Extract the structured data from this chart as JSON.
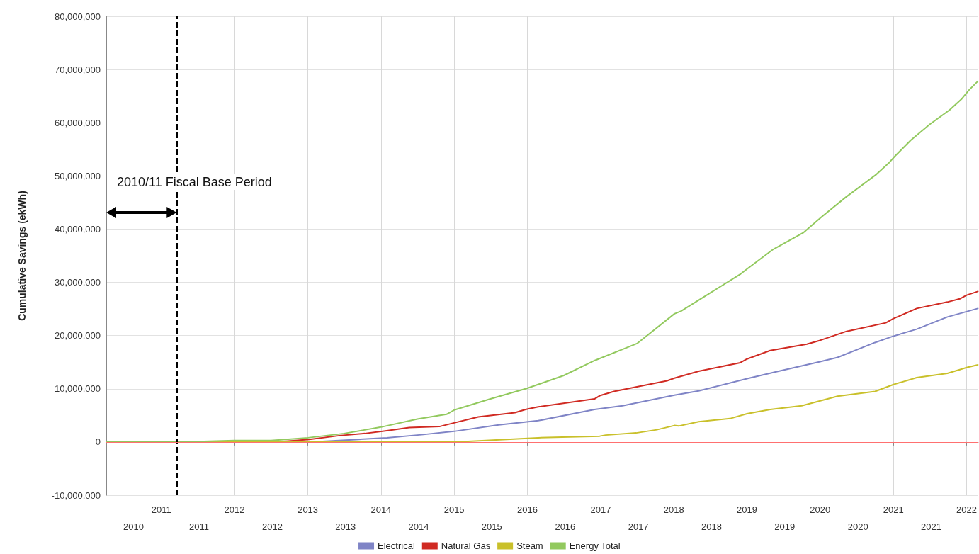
{
  "chart_data": {
    "type": "line",
    "ylabel": "Cumulative Savings (ekWh)",
    "annotations": [
      "2010/11 Fiscal Base Period"
    ],
    "xlim": [
      "2010-04-01",
      "2022-02-28"
    ],
    "xticks": [
      "2011",
      "2012",
      "2013",
      "2014",
      "2015",
      "2016",
      "2017",
      "2018",
      "2019",
      "2020",
      "2021",
      "2022"
    ],
    "x2lim": [
      "2010-04-01",
      "2022-02-28"
    ],
    "x2ticks": [
      {
        "value": "2010-08-15",
        "label": "2010"
      },
      {
        "value": "2011-07-08",
        "label": "2011"
      },
      {
        "value": "2012-07-08",
        "label": "2012"
      },
      {
        "value": "2013-07-08",
        "label": "2013"
      },
      {
        "value": "2014-07-08",
        "label": "2014"
      },
      {
        "value": "2015-07-08",
        "label": "2015"
      },
      {
        "value": "2016-07-08",
        "label": "2016"
      },
      {
        "value": "2017-07-08",
        "label": "2017"
      },
      {
        "value": "2018-07-08",
        "label": "2018"
      },
      {
        "value": "2019-07-08",
        "label": "2019"
      },
      {
        "value": "2020-07-08",
        "label": "2020"
      },
      {
        "value": "2021-07-08",
        "label": "2021"
      }
    ],
    "ylim": [
      -10000000,
      80000000
    ],
    "yticks": [
      {
        "value": -10000000,
        "label": "-10,000,000"
      },
      {
        "value": 0,
        "label": "0"
      },
      {
        "value": 10000000,
        "label": "10,000,000"
      },
      {
        "value": 20000000,
        "label": "20,000,000"
      },
      {
        "value": 30000000,
        "label": "30,000,000"
      },
      {
        "value": 40000000,
        "label": "40,000,000"
      },
      {
        "value": 50000000,
        "label": "50,000,000"
      },
      {
        "value": 60000000,
        "label": "60,000,000"
      },
      {
        "value": 70000000,
        "label": "70,000,000"
      },
      {
        "value": 80000000,
        "label": "80,000,000"
      }
    ],
    "grid": true,
    "legend": "bottom",
    "marker": "none",
    "line_style": "solid",
    "ref_lines": [
      {
        "axis": "x",
        "value": "2011-03-18",
        "label": null,
        "color": "#000000",
        "line_style": "dashed"
      },
      {
        "axis": "y",
        "value": 0,
        "label": null,
        "color": "#ff7070",
        "line_style": "solid"
      }
    ],
    "series": [
      {
        "name": "Electrical",
        "color": "#7f84c6",
        "x": [
          "2012-01-01",
          "2013-01-08",
          "2013-09-13",
          "2014-01-30",
          "2014-07-31",
          "2015-01-01",
          "2015-08-11",
          "2016-02-24",
          "2016-12-01",
          "2017-04-20",
          "2018-01-04",
          "2018-05-05",
          "2019-01-01",
          "2019-05-27",
          "2020-01-01",
          "2020-03-28",
          "2020-10-01",
          "2021-01-01",
          "2021-04-27",
          "2021-09-27",
          "2022-02-26"
        ],
        "values": [
          0,
          0,
          500000,
          800000,
          1400000,
          2000000,
          3200000,
          4000000,
          6100000,
          6800000,
          8800000,
          9600000,
          11900000,
          13200000,
          15100000,
          15900000,
          18700000,
          19900000,
          21200000,
          23500000,
          25100000
        ]
      },
      {
        "name": "Natural Gas",
        "color": "#d02a22",
        "x": [
          "2012-01-01",
          "2012-07-20",
          "2013-01-08",
          "2013-06-07",
          "2013-10-12",
          "2014-01-30",
          "2014-05-22",
          "2014-10-19",
          "2015-01-01",
          "2015-05-01",
          "2015-10-31",
          "2015-12-23",
          "2016-02-24",
          "2016-12-01",
          "2016-12-27",
          "2017-03-08",
          "2017-11-28",
          "2018-01-04",
          "2018-05-05",
          "2018-11-28",
          "2019-01-01",
          "2019-04-27",
          "2019-10-27",
          "2020-01-01",
          "2020-05-12",
          "2020-11-24",
          "2021-01-01",
          "2021-04-27",
          "2021-09-27",
          "2021-11-28",
          "2022-01-01",
          "2022-02-26"
        ],
        "values": [
          0,
          0,
          500000,
          1200000,
          1600000,
          2100000,
          2700000,
          2900000,
          3600000,
          4700000,
          5500000,
          6100000,
          6600000,
          8100000,
          8700000,
          9500000,
          11500000,
          12000000,
          13300000,
          14900000,
          15600000,
          17200000,
          18400000,
          19100000,
          20800000,
          22400000,
          23200000,
          25100000,
          26300000,
          26900000,
          27600000,
          28300000
        ]
      },
      {
        "name": "Steam",
        "color": "#c9c02a",
        "x": [
          "2010-04-01",
          "2011-01-01",
          "2012-01-01",
          "2013-01-01",
          "2014-01-01",
          "2015-01-01",
          "2016-02-24",
          "2016-12-27",
          "2017-01-26",
          "2017-06-27",
          "2017-10-08",
          "2018-01-04",
          "2018-01-25",
          "2018-05-05",
          "2018-10-08",
          "2019-01-01",
          "2019-04-27",
          "2019-10-01",
          "2020-03-28",
          "2020-10-01",
          "2021-01-01",
          "2021-04-27",
          "2021-09-27",
          "2021-11-28",
          "2022-01-01",
          "2022-02-26"
        ],
        "values": [
          0,
          0,
          0,
          0,
          0,
          0,
          800000,
          1100000,
          1300000,
          1700000,
          2300000,
          3100000,
          3000000,
          3800000,
          4400000,
          5300000,
          6100000,
          6800000,
          8600000,
          9500000,
          10800000,
          12100000,
          12900000,
          13600000,
          14000000,
          14500000
        ]
      },
      {
        "name": "Energy Total",
        "color": "#92c95e",
        "x": [
          "2010-04-01",
          "2011-01-01",
          "2011-07-01",
          "2012-01-01",
          "2012-07-01",
          "2013-01-01",
          "2013-07-01",
          "2013-10-01",
          "2014-01-01",
          "2014-07-01",
          "2014-11-24",
          "2015-01-01",
          "2015-07-01",
          "2016-01-01",
          "2016-07-01",
          "2016-12-01",
          "2017-07-01",
          "2018-01-04",
          "2018-02-06",
          "2018-05-15",
          "2018-12-01",
          "2019-01-08",
          "2019-05-08",
          "2019-10-08",
          "2020-01-08",
          "2020-05-08",
          "2020-10-08",
          "2020-12-08",
          "2021-01-08",
          "2021-03-28",
          "2021-07-01",
          "2021-10-08",
          "2021-12-08",
          "2022-01-12",
          "2022-02-26"
        ],
        "values": [
          0,
          0,
          100000,
          300000,
          300000,
          800000,
          1600000,
          2200000,
          2800000,
          4300000,
          5200000,
          6000000,
          8100000,
          10100000,
          12500000,
          15300000,
          18500000,
          24100000,
          24600000,
          26900000,
          31600000,
          32700000,
          36100000,
          39300000,
          42300000,
          46000000,
          50300000,
          52400000,
          53700000,
          56700000,
          59700000,
          62400000,
          64500000,
          66100000,
          67800000
        ]
      }
    ]
  }
}
